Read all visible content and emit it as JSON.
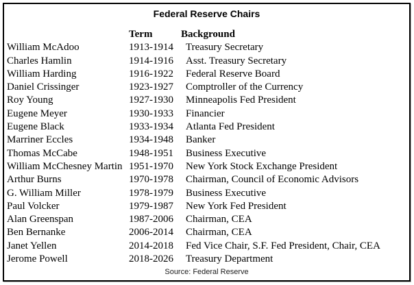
{
  "title": "Federal Reserve Chairs",
  "columns": {
    "term": "Term",
    "background": "Background"
  },
  "rows": [
    {
      "name": "William McAdoo",
      "term": "1913-1914",
      "background": "Treasury Secretary"
    },
    {
      "name": "Charles Hamlin",
      "term": "1914-1916",
      "background": "Asst. Treasury Secretary"
    },
    {
      "name": "William Harding",
      "term": "1916-1922",
      "background": "Federal Reserve Board"
    },
    {
      "name": "Daniel Crissinger",
      "term": "1923-1927",
      "background": "Comptroller of the Currency"
    },
    {
      "name": "Roy Young",
      "term": "1927-1930",
      "background": "Minneapolis Fed President"
    },
    {
      "name": "Eugene Meyer",
      "term": "1930-1933",
      "background": "Financier"
    },
    {
      "name": "Eugene Black",
      "term": "1933-1934",
      "background": "Atlanta Fed President"
    },
    {
      "name": "Marriner Eccles",
      "term": "1934-1948",
      "background": "Banker"
    },
    {
      "name": "Thomas McCabe",
      "term": "1948-1951",
      "background": "Business Executive"
    },
    {
      "name": "William McChesney Martin",
      "term": "1951-1970",
      "background": "New York Stock Exchange President"
    },
    {
      "name": "Arthur Burns",
      "term": "1970-1978",
      "background": "Chairman, Council of Economic Advisors"
    },
    {
      "name": "G. William Miller",
      "term": "1978-1979",
      "background": "Business Executive"
    },
    {
      "name": "Paul Volcker",
      "term": "1979-1987",
      "background": "New York Fed President"
    },
    {
      "name": "Alan Greenspan",
      "term": "1987-2006",
      "background": "Chairman, CEA"
    },
    {
      "name": "Ben Bernanke",
      "term": "2006-2014",
      "background": "Chairman, CEA"
    },
    {
      "name": "Janet Yellen",
      "term": "2014-2018",
      "background": "Fed Vice Chair, S.F. Fed President, Chair, CEA"
    },
    {
      "name": "Jerome Powell",
      "term": "2018-2026",
      "background": "Treasury Department"
    }
  ],
  "source": "Source: Federal Reserve",
  "colors": {
    "border": "#000000",
    "text": "#000000",
    "page_background": "#ffffff"
  },
  "chart_data": {
    "type": "table",
    "title": "Federal Reserve Chairs",
    "columns": [
      "",
      "Term",
      "Background"
    ],
    "rows": [
      [
        "William McAdoo",
        "1913-1914",
        "Treasury Secretary"
      ],
      [
        "Charles Hamlin",
        "1914-1916",
        "Asst. Treasury Secretary"
      ],
      [
        "William Harding",
        "1916-1922",
        "Federal Reserve Board"
      ],
      [
        "Daniel Crissinger",
        "1923-1927",
        "Comptroller of the Currency"
      ],
      [
        "Roy Young",
        "1927-1930",
        "Minneapolis Fed President"
      ],
      [
        "Eugene Meyer",
        "1930-1933",
        "Financier"
      ],
      [
        "Eugene Black",
        "1933-1934",
        "Atlanta Fed President"
      ],
      [
        "Marriner Eccles",
        "1934-1948",
        "Banker"
      ],
      [
        "Thomas McCabe",
        "1948-1951",
        "Business Executive"
      ],
      [
        "William McChesney Martin",
        "1951-1970",
        "New York Stock Exchange President"
      ],
      [
        "Arthur Burns",
        "1970-1978",
        "Chairman, Council of Economic Advisors"
      ],
      [
        "G. William Miller",
        "1978-1979",
        "Business Executive"
      ],
      [
        "Paul Volcker",
        "1979-1987",
        "New York Fed President"
      ],
      [
        "Alan Greenspan",
        "1987-2006",
        "Chairman, CEA"
      ],
      [
        "Ben Bernanke",
        "2006-2014",
        "Chairman, CEA"
      ],
      [
        "Janet Yellen",
        "2014-2018",
        "Fed Vice Chair, S.F. Fed President, Chair, CEA"
      ],
      [
        "Jerome Powell",
        "2018-2026",
        "Treasury Department"
      ]
    ],
    "source_note": "Source: Federal Reserve"
  }
}
